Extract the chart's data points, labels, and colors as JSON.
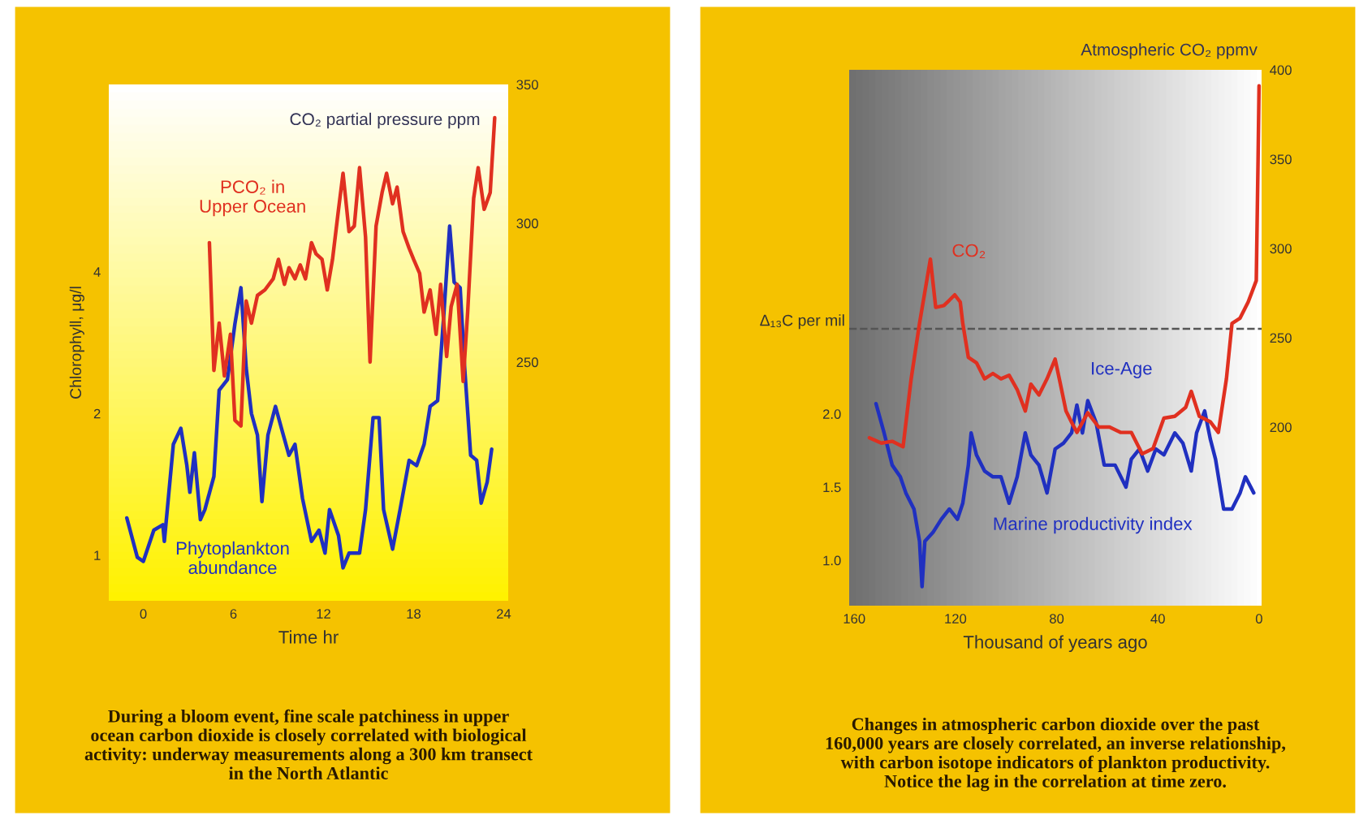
{
  "chart_data": [
    {
      "type": "line",
      "xlabel": "Time hr",
      "ylabel": "Chlorophyll, μg/l",
      "y2label": "CO₂ partial pressure ppm",
      "log": "y",
      "grid": false,
      "legend": false,
      "xlim": [
        -2.3,
        24.3
      ],
      "xticks": [
        0,
        6,
        12,
        18,
        24
      ],
      "ylim": [
        0.8,
        10
      ],
      "yticks": [
        1,
        2,
        4
      ],
      "y2lim": [
        164,
        350
      ],
      "y2ticks": [
        250,
        300,
        350
      ],
      "series": [
        {
          "name": "PCO₂ in\nUpper Ocean",
          "color": "#e03020",
          "axis": "y2",
          "x": [
            4.4,
            4.7,
            5.05,
            5.4,
            5.8,
            6.1,
            6.5,
            6.85,
            7.2,
            7.6,
            8.1,
            8.65,
            9.0,
            9.4,
            9.7,
            10.1,
            10.45,
            10.8,
            11.2,
            11.5,
            11.9,
            12.25,
            12.6,
            13.0,
            13.3,
            13.7,
            14.05,
            14.4,
            14.8,
            15.1,
            15.5,
            15.9,
            16.2,
            16.6,
            16.9,
            17.3,
            17.7,
            18.0,
            18.4,
            18.7,
            19.1,
            19.5,
            19.8,
            20.2,
            20.5,
            20.9,
            21.3,
            21.6,
            22.0,
            22.3,
            22.7,
            23.1,
            23.4
          ],
          "values": [
            293,
            247,
            264,
            245,
            260,
            229,
            227,
            272,
            264,
            274,
            276,
            280,
            287,
            278,
            284,
            280,
            285,
            280,
            293,
            289,
            287,
            276,
            287,
            305,
            318,
            297,
            299,
            320,
            295,
            250,
            299,
            311,
            318,
            307,
            313,
            297,
            291,
            287,
            282,
            268,
            276,
            260,
            278,
            252,
            270,
            278,
            243,
            268,
            309,
            320,
            305,
            311,
            338
          ]
        },
        {
          "name": "Phytoplankton\nabundance",
          "color": "#2030c0",
          "x": [
            -1.1,
            -0.4,
            0,
            0.7,
            1.3,
            1.4,
            2.0,
            2.5,
            2.9,
            3.1,
            3.4,
            3.8,
            4.1,
            4.7,
            5.05,
            5.6,
            6.1,
            6.5,
            6.85,
            7.2,
            7.6,
            7.9,
            8.3,
            8.8,
            9.2,
            9.7,
            10.1,
            10.6,
            11.2,
            11.7,
            12.1,
            12.4,
            13.0,
            13.3,
            13.7,
            14.4,
            14.8,
            15.3,
            15.7,
            16.0,
            16.6,
            17.1,
            17.7,
            18.2,
            18.7,
            19.1,
            19.6,
            20.0,
            20.4,
            20.7,
            21.1,
            21.4,
            21.8,
            22.2,
            22.5,
            22.9,
            23.2
          ],
          "values": [
            1.2,
            0.99,
            0.97,
            1.13,
            1.16,
            1.07,
            1.72,
            1.86,
            1.55,
            1.36,
            1.65,
            1.19,
            1.25,
            1.47,
            2.24,
            2.36,
            3.1,
            3.7,
            2.5,
            2.0,
            1.8,
            1.3,
            1.8,
            2.07,
            1.86,
            1.63,
            1.72,
            1.32,
            1.07,
            1.13,
            1.01,
            1.25,
            1.1,
            0.94,
            1.01,
            1.01,
            1.25,
            1.96,
            1.96,
            1.25,
            1.03,
            1.25,
            1.59,
            1.55,
            1.72,
            2.07,
            2.13,
            3.2,
            5.0,
            3.8,
            3.7,
            2.5,
            1.63,
            1.59,
            1.29,
            1.43,
            1.68
          ]
        }
      ],
      "annotations": [
        "During a bloom event, fine scale patchiness in upper\nocean carbon dioxide is closely correlated with biological\nactivity: underway measurements along a 300 km transect\nin the North Atlantic"
      ]
    },
    {
      "type": "line",
      "xlabel": "Thousand of years ago",
      "ylabel": "Δ₁₃C per mil",
      "y2label": "Atmospheric CO₂ ppmv",
      "grid": false,
      "legend": false,
      "xlim": [
        162,
        -1
      ],
      "xticks": [
        160,
        120,
        80,
        40,
        0
      ],
      "ylim": [
        0.69,
        4.35
      ],
      "yticks": [
        {
          "value": 1.0,
          "label": "1.0"
        },
        {
          "value": 1.5,
          "label": "1.5"
        },
        {
          "value": 2.0,
          "label": "2.0"
        }
      ],
      "y2lim": [
        100,
        400
      ],
      "y2ticks": [
        200,
        250,
        300,
        350,
        400
      ],
      "ref_lines": [
        {
          "axis": "y2",
          "value": 255,
          "color": "#555555",
          "line_style": "dashed"
        }
      ],
      "series": [
        {
          "name": "CO₂",
          "color": "#e03020",
          "axis": "y2",
          "x": [
            154,
            149.3,
            145,
            140.7,
            137.5,
            134.2,
            129.9,
            127.8,
            124.6,
            122.4,
            120.3,
            118.1,
            117.1,
            114.9,
            111.7,
            108.5,
            105.2,
            102,
            98.8,
            95.6,
            92.4,
            90.2,
            87,
            83.8,
            80.6,
            78.5,
            76.3,
            74.2,
            72,
            67.7,
            63.4,
            59.1,
            54.8,
            50.5,
            46.2,
            41.9,
            37.6,
            33.3,
            29,
            26.8,
            23.6,
            19.3,
            16.1,
            12.9,
            10.7,
            7.5,
            4.3,
            1.1,
            0.4,
            0
          ],
          "values": [
            194,
            191,
            192,
            189,
            227,
            258,
            294,
            267,
            268,
            271,
            274,
            270,
            258,
            239,
            236,
            227,
            230,
            227,
            229,
            221,
            209,
            224,
            218,
            227,
            238,
            224,
            209,
            203,
            197,
            208,
            200,
            200,
            197,
            197,
            185,
            188,
            205,
            206,
            211,
            220,
            206,
            203,
            197,
            227,
            258,
            261,
            270,
            282,
            349,
            391
          ]
        },
        {
          "name": "Marine productivity index",
          "color": "#2030c0",
          "x": [
            151.4,
            148.2,
            145,
            141.8,
            139.6,
            136.4,
            134.2,
            133.2,
            132.1,
            128.9,
            125.6,
            122.4,
            119.2,
            117.1,
            114.9,
            113.8,
            111.7,
            108.5,
            105.2,
            102,
            98.8,
            95.6,
            92.4,
            90.2,
            87,
            83.8,
            80.6,
            77.3,
            74.1,
            72,
            69.8,
            67.7,
            64.4,
            61.2,
            56.9,
            52.6,
            50.5,
            47.3,
            44,
            40.8,
            37.6,
            33.3,
            30.1,
            26.8,
            24.7,
            21.5,
            19.3,
            17.2,
            14,
            10.7,
            7.5,
            5.4,
            2.1
          ],
          "values": [
            2.07,
            1.87,
            1.65,
            1.57,
            1.46,
            1.35,
            1.13,
            0.82,
            1.13,
            1.19,
            1.28,
            1.35,
            1.28,
            1.39,
            1.65,
            1.87,
            1.72,
            1.61,
            1.57,
            1.57,
            1.39,
            1.57,
            1.87,
            1.72,
            1.65,
            1.46,
            1.76,
            1.8,
            1.87,
            2.06,
            1.87,
            2.09,
            1.94,
            1.65,
            1.65,
            1.5,
            1.69,
            1.76,
            1.61,
            1.76,
            1.72,
            1.87,
            1.8,
            1.61,
            1.87,
            2.02,
            1.83,
            1.69,
            1.35,
            1.35,
            1.46,
            1.57,
            1.46
          ]
        }
      ],
      "annotations": [
        "Ice-Age",
        "Changes in atmospheric carbon dioxide over the past\n160,000 years are closely correlated, an inverse relationship,\nwith carbon isotope indicators of plankton productivity.\nNotice the lag in the correlation at time zero."
      ]
    }
  ]
}
